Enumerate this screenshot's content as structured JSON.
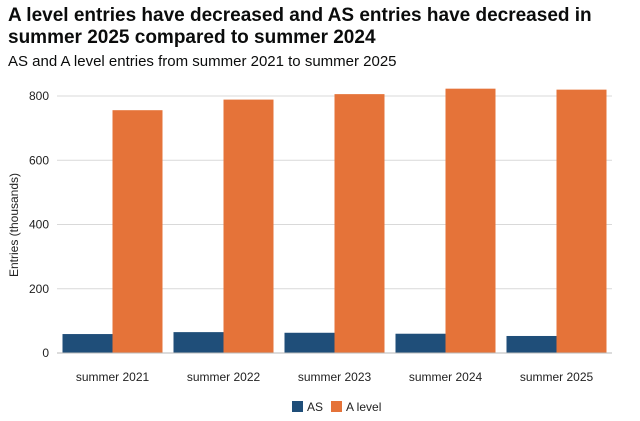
{
  "chart_data": {
    "type": "bar",
    "title": "A level entries have decreased and AS entries have decreased in summer 2025 compared to summer 2024",
    "subtitle": "AS and A level entries from summer 2021 to summer 2025",
    "xlabel": "",
    "ylabel": "Entries (thousands)",
    "categories": [
      "summer 2021",
      "summer 2022",
      "summer 2023",
      "summer 2024",
      "summer 2025"
    ],
    "series": [
      {
        "name": "AS",
        "color": "#1f4e79",
        "values": [
          59,
          65,
          63,
          60,
          53
        ]
      },
      {
        "name": "A level",
        "color": "#e57339",
        "values": [
          756,
          789,
          806,
          823,
          820
        ]
      }
    ],
    "ylim": [
      0,
      850
    ],
    "yticks": [
      0,
      200,
      400,
      600,
      800
    ],
    "grid": true,
    "legend": "bottom"
  }
}
